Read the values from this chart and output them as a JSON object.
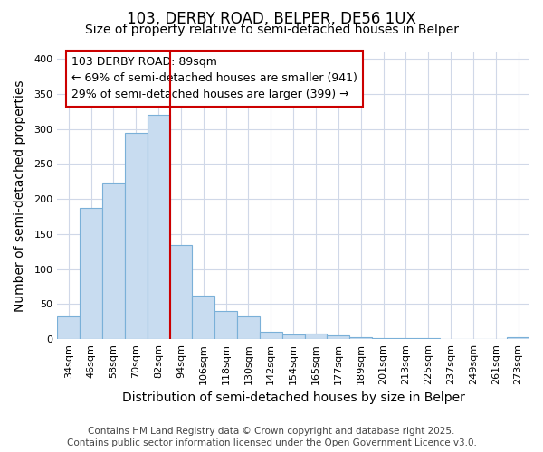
{
  "title": "103, DERBY ROAD, BELPER, DE56 1UX",
  "subtitle": "Size of property relative to semi-detached houses in Belper",
  "xlabel": "Distribution of semi-detached houses by size in Belper",
  "ylabel": "Number of semi-detached properties",
  "categories": [
    "34sqm",
    "46sqm",
    "58sqm",
    "70sqm",
    "82sqm",
    "94sqm",
    "106sqm",
    "118sqm",
    "130sqm",
    "142sqm",
    "154sqm",
    "165sqm",
    "177sqm",
    "189sqm",
    "201sqm",
    "213sqm",
    "225sqm",
    "237sqm",
    "249sqm",
    "261sqm",
    "273sqm"
  ],
  "values": [
    32,
    188,
    224,
    295,
    320,
    135,
    62,
    40,
    33,
    10,
    7,
    8,
    5,
    3,
    1,
    1,
    1,
    0,
    0,
    0,
    3
  ],
  "bar_color": "#c8dcf0",
  "bar_edge_color": "#7ab0d8",
  "bar_edge_width": 0.8,
  "vline_x": 4.5,
  "vline_color": "#cc0000",
  "annotation_line1": "103 DERBY ROAD: 89sqm",
  "annotation_line2": "← 69% of semi-detached houses are smaller (941)",
  "annotation_line3": "29% of semi-detached houses are larger (399) →",
  "box_color": "#cc0000",
  "ylim": [
    0,
    410
  ],
  "yticks": [
    0,
    50,
    100,
    150,
    200,
    250,
    300,
    350,
    400
  ],
  "footer_line1": "Contains HM Land Registry data © Crown copyright and database right 2025.",
  "footer_line2": "Contains public sector information licensed under the Open Government Licence v3.0.",
  "title_fontsize": 12,
  "subtitle_fontsize": 10,
  "axis_label_fontsize": 10,
  "tick_fontsize": 8,
  "annotation_fontsize": 9,
  "footer_fontsize": 7.5,
  "background_color": "#ffffff",
  "plot_bg_color": "#ffffff",
  "grid_color": "#d0d8e8"
}
